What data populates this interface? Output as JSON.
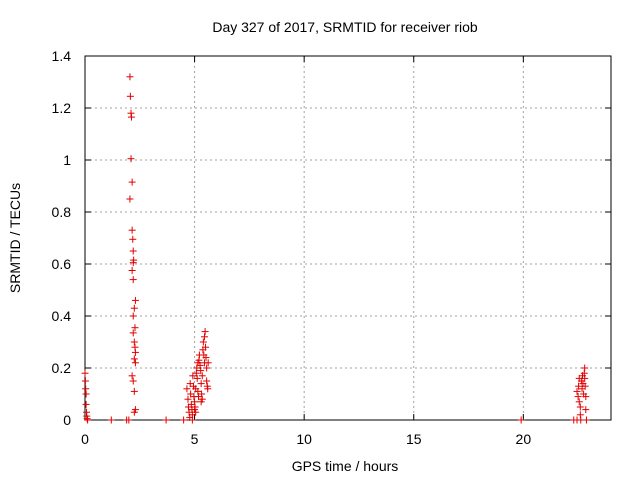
{
  "chart_data": {
    "type": "scatter",
    "title": "Day 327 of 2017, SRMTID for receiver riob",
    "xlabel": "GPS time / hours",
    "ylabel": "SRMTID / TECUs",
    "xlim": [
      0,
      24
    ],
    "ylim": [
      0,
      1.4
    ],
    "xticks": [
      0,
      5,
      10,
      15,
      20
    ],
    "yticks": [
      0,
      0.2,
      0.4,
      0.6,
      0.8,
      1,
      1.2,
      1.4
    ],
    "ytick_labels": [
      "0",
      "0.2",
      "0.4",
      "0.6",
      "0.8",
      "1",
      "1.2",
      "1.4"
    ],
    "grid": true,
    "marker": "+",
    "color": "#e00000",
    "series": [
      {
        "name": "SRMTID",
        "points": [
          [
            0.0,
            0.18
          ],
          [
            0.02,
            0.15
          ],
          [
            0.03,
            0.12
          ],
          [
            0.05,
            0.1
          ],
          [
            0.05,
            0.06
          ],
          [
            0.07,
            0.03
          ],
          [
            0.08,
            0.015
          ],
          [
            0.1,
            0.005
          ],
          [
            0.12,
            0.0
          ],
          [
            1.2,
            0.0
          ],
          [
            1.9,
            0.0
          ],
          [
            2.0,
            0.0
          ],
          [
            2.05,
            1.32
          ],
          [
            2.07,
            1.245
          ],
          [
            2.1,
            1.18
          ],
          [
            2.12,
            1.165
          ],
          [
            2.1,
            1.005
          ],
          [
            2.15,
            0.915
          ],
          [
            2.05,
            0.85
          ],
          [
            2.15,
            0.73
          ],
          [
            2.18,
            0.695
          ],
          [
            2.2,
            0.65
          ],
          [
            2.22,
            0.615
          ],
          [
            2.2,
            0.605
          ],
          [
            2.15,
            0.575
          ],
          [
            2.2,
            0.54
          ],
          [
            2.3,
            0.46
          ],
          [
            2.25,
            0.43
          ],
          [
            2.2,
            0.4
          ],
          [
            2.28,
            0.355
          ],
          [
            2.2,
            0.335
          ],
          [
            2.25,
            0.3
          ],
          [
            2.28,
            0.28
          ],
          [
            2.3,
            0.26
          ],
          [
            2.25,
            0.235
          ],
          [
            2.3,
            0.22
          ],
          [
            2.15,
            0.17
          ],
          [
            2.2,
            0.15
          ],
          [
            2.25,
            0.11
          ],
          [
            2.3,
            0.04
          ],
          [
            2.25,
            0.03
          ],
          [
            3.7,
            0.0
          ],
          [
            4.5,
            0.0
          ],
          [
            4.65,
            0.12
          ],
          [
            4.7,
            0.08
          ],
          [
            4.72,
            0.05
          ],
          [
            4.75,
            0.03
          ],
          [
            4.78,
            0.01
          ],
          [
            4.8,
            0.14
          ],
          [
            4.82,
            0.1
          ],
          [
            4.85,
            0.06
          ],
          [
            4.88,
            0.04
          ],
          [
            4.9,
            0.02
          ],
          [
            4.92,
            0.17
          ],
          [
            4.95,
            0.13
          ],
          [
            4.97,
            0.09
          ],
          [
            5.0,
            0.07
          ],
          [
            5.02,
            0.05
          ],
          [
            5.05,
            0.03
          ],
          [
            5.05,
            0.12
          ],
          [
            5.08,
            0.18
          ],
          [
            5.1,
            0.2
          ],
          [
            5.12,
            0.16
          ],
          [
            5.15,
            0.11
          ],
          [
            5.18,
            0.09
          ],
          [
            5.2,
            0.23
          ],
          [
            5.22,
            0.25
          ],
          [
            5.25,
            0.21
          ],
          [
            5.28,
            0.19
          ],
          [
            5.3,
            0.14
          ],
          [
            5.32,
            0.1
          ],
          [
            5.35,
            0.08
          ],
          [
            5.38,
            0.27
          ],
          [
            5.4,
            0.3
          ],
          [
            5.42,
            0.25
          ],
          [
            5.45,
            0.22
          ],
          [
            5.45,
            0.32
          ],
          [
            5.48,
            0.34
          ],
          [
            5.5,
            0.28
          ],
          [
            5.52,
            0.24
          ],
          [
            5.55,
            0.2
          ],
          [
            5.55,
            0.15
          ],
          [
            5.58,
            0.13
          ],
          [
            5.6,
            0.12
          ],
          [
            5.62,
            0.22
          ],
          [
            5.3,
            0.07
          ],
          [
            5.0,
            0.04
          ],
          [
            4.9,
            0.0
          ],
          [
            5.15,
            0.22
          ],
          [
            5.35,
            0.17
          ],
          [
            19.9,
            0.0
          ],
          [
            22.3,
            0.0
          ],
          [
            22.45,
            0.0
          ],
          [
            22.45,
            0.11
          ],
          [
            22.5,
            0.09
          ],
          [
            22.52,
            0.13
          ],
          [
            22.55,
            0.16
          ],
          [
            22.55,
            0.07
          ],
          [
            22.6,
            0.05
          ],
          [
            22.6,
            0.02
          ],
          [
            22.62,
            0.0
          ],
          [
            22.65,
            0.15
          ],
          [
            22.68,
            0.12
          ],
          [
            22.7,
            0.17
          ],
          [
            22.72,
            0.14
          ],
          [
            22.75,
            0.1
          ],
          [
            22.78,
            0.18
          ],
          [
            22.8,
            0.16
          ],
          [
            22.8,
            0.2
          ],
          [
            22.82,
            0.13
          ],
          [
            22.85,
            0.09
          ],
          [
            22.85,
            0.04
          ],
          [
            22.88,
            0.0
          ]
        ]
      }
    ]
  }
}
